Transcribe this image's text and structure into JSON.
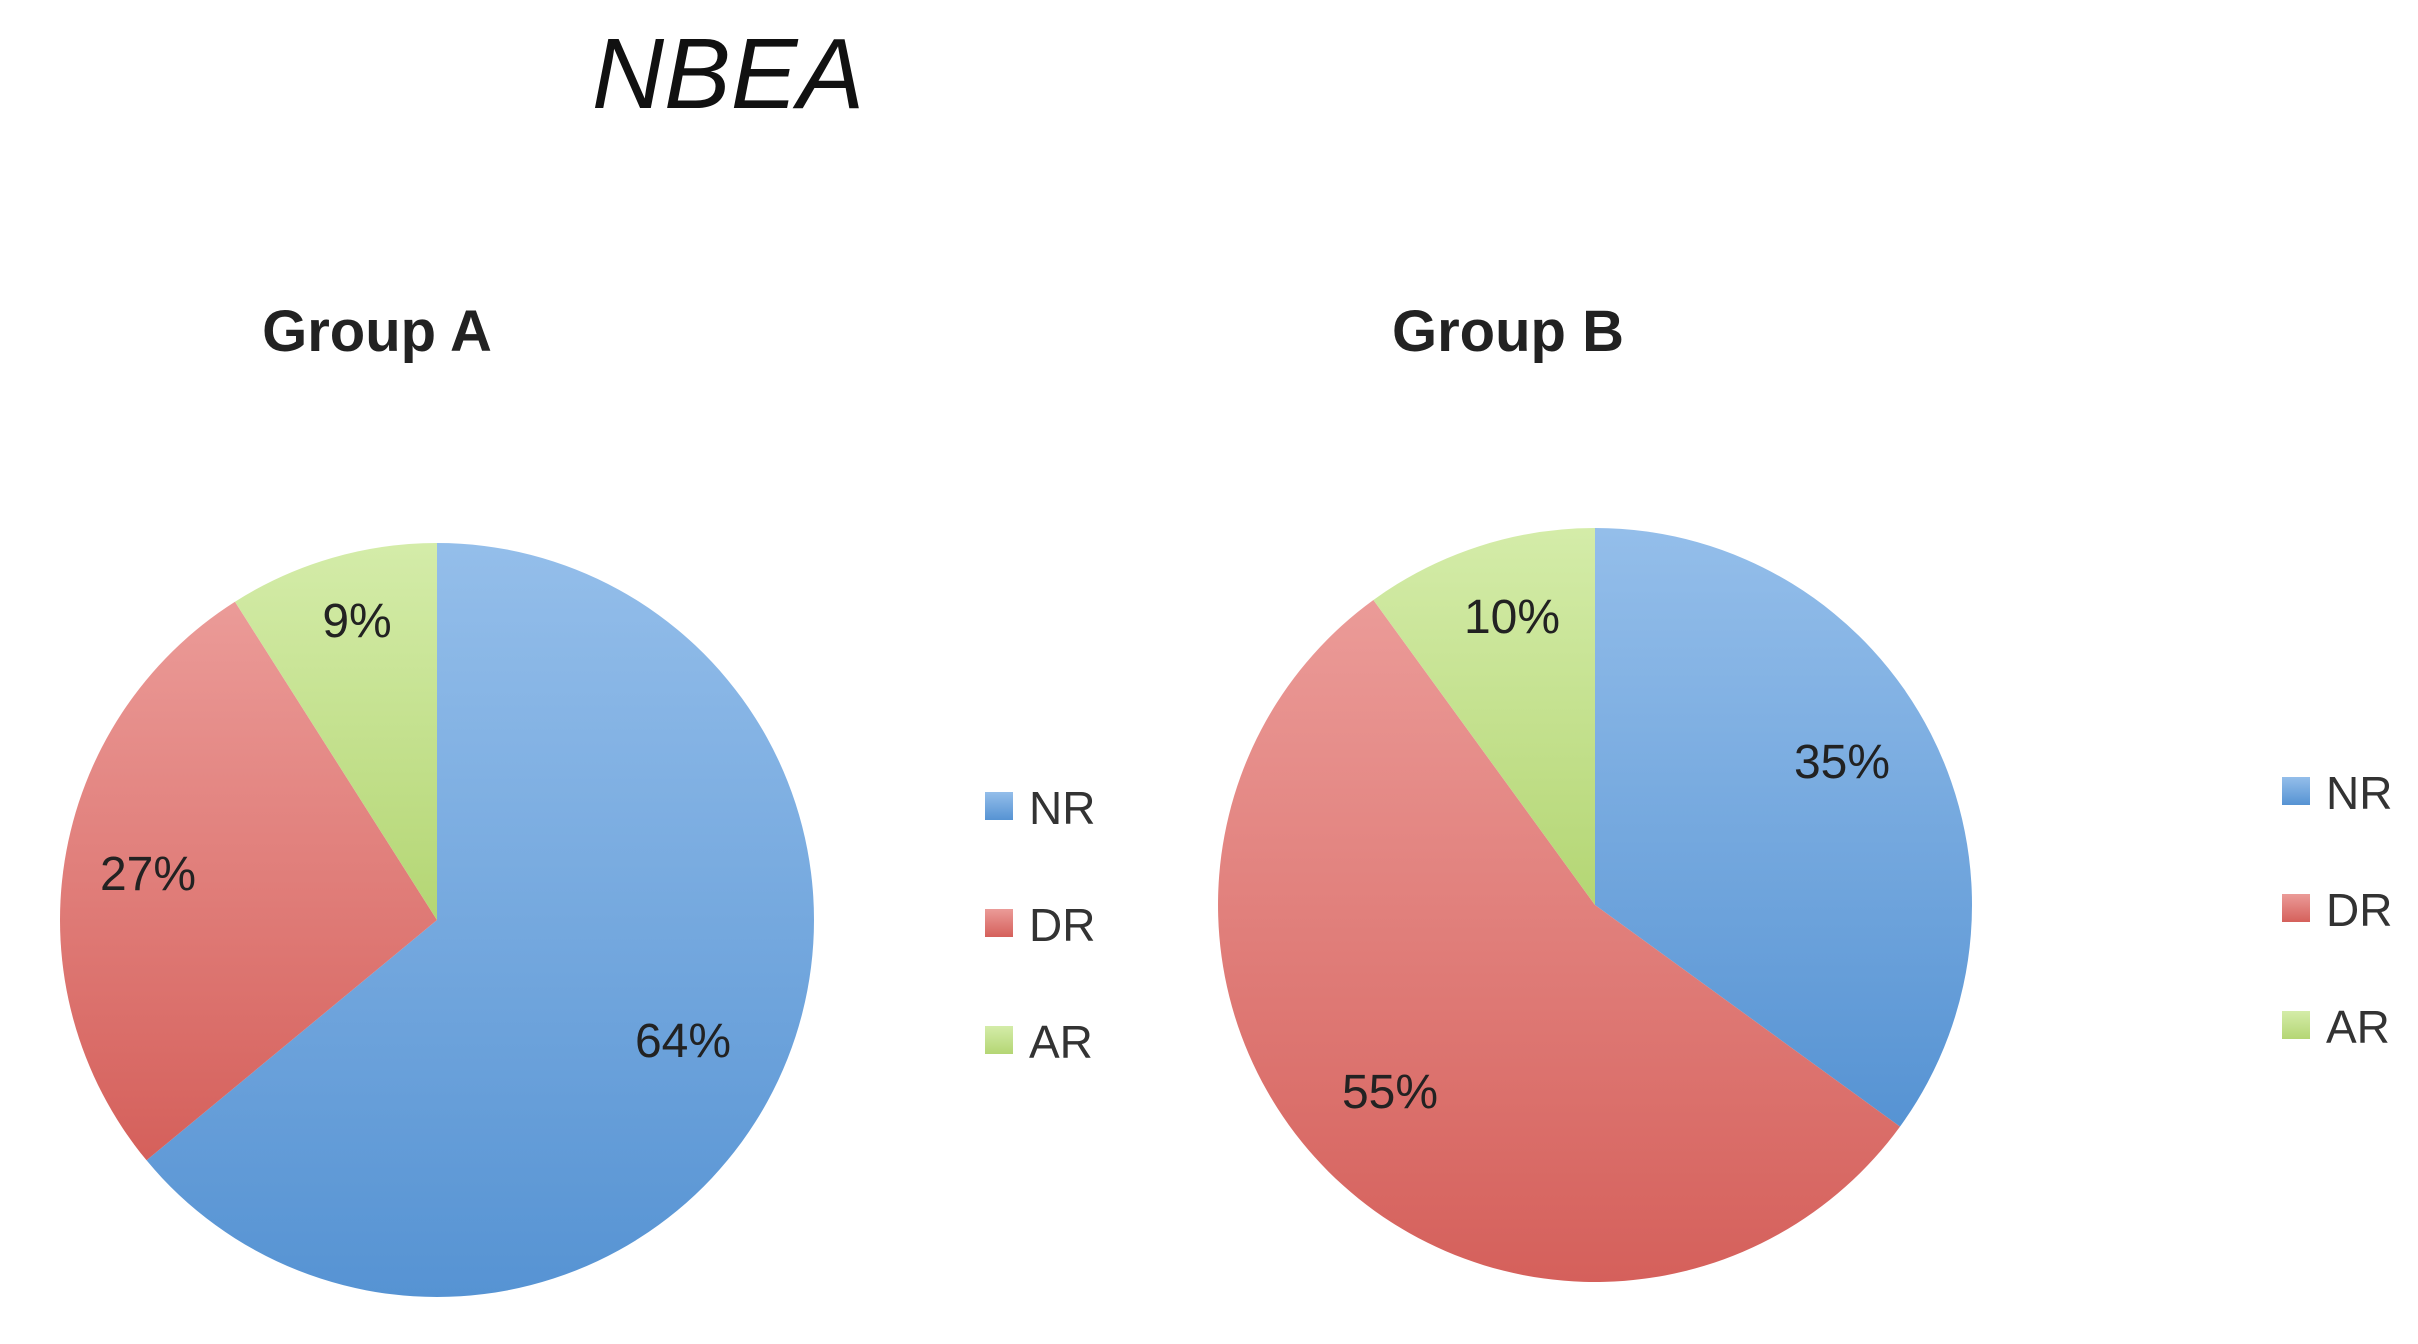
{
  "figure_title": "NBEA",
  "colors": {
    "NR": "#5b9bde",
    "DR": "#e06560",
    "AR": "#bde17a"
  },
  "chart_data": [
    {
      "type": "pie",
      "title": "Group A",
      "categories": [
        "NR",
        "DR",
        "AR"
      ],
      "values": [
        64,
        27,
        9
      ],
      "labels": [
        "64%",
        "27%",
        "9%"
      ],
      "legend": [
        "NR",
        "DR",
        "AR"
      ],
      "legend_position": "right",
      "start": "12 o'clock, clockwise"
    },
    {
      "type": "pie",
      "title": "Group B",
      "categories": [
        "NR",
        "DR",
        "AR"
      ],
      "values": [
        35,
        55,
        10
      ],
      "labels": [
        "35%",
        "55%",
        "10%"
      ],
      "legend": [
        "NR",
        "DR",
        "AR"
      ],
      "legend_position": "right",
      "start": "12 o'clock, clockwise"
    }
  ]
}
